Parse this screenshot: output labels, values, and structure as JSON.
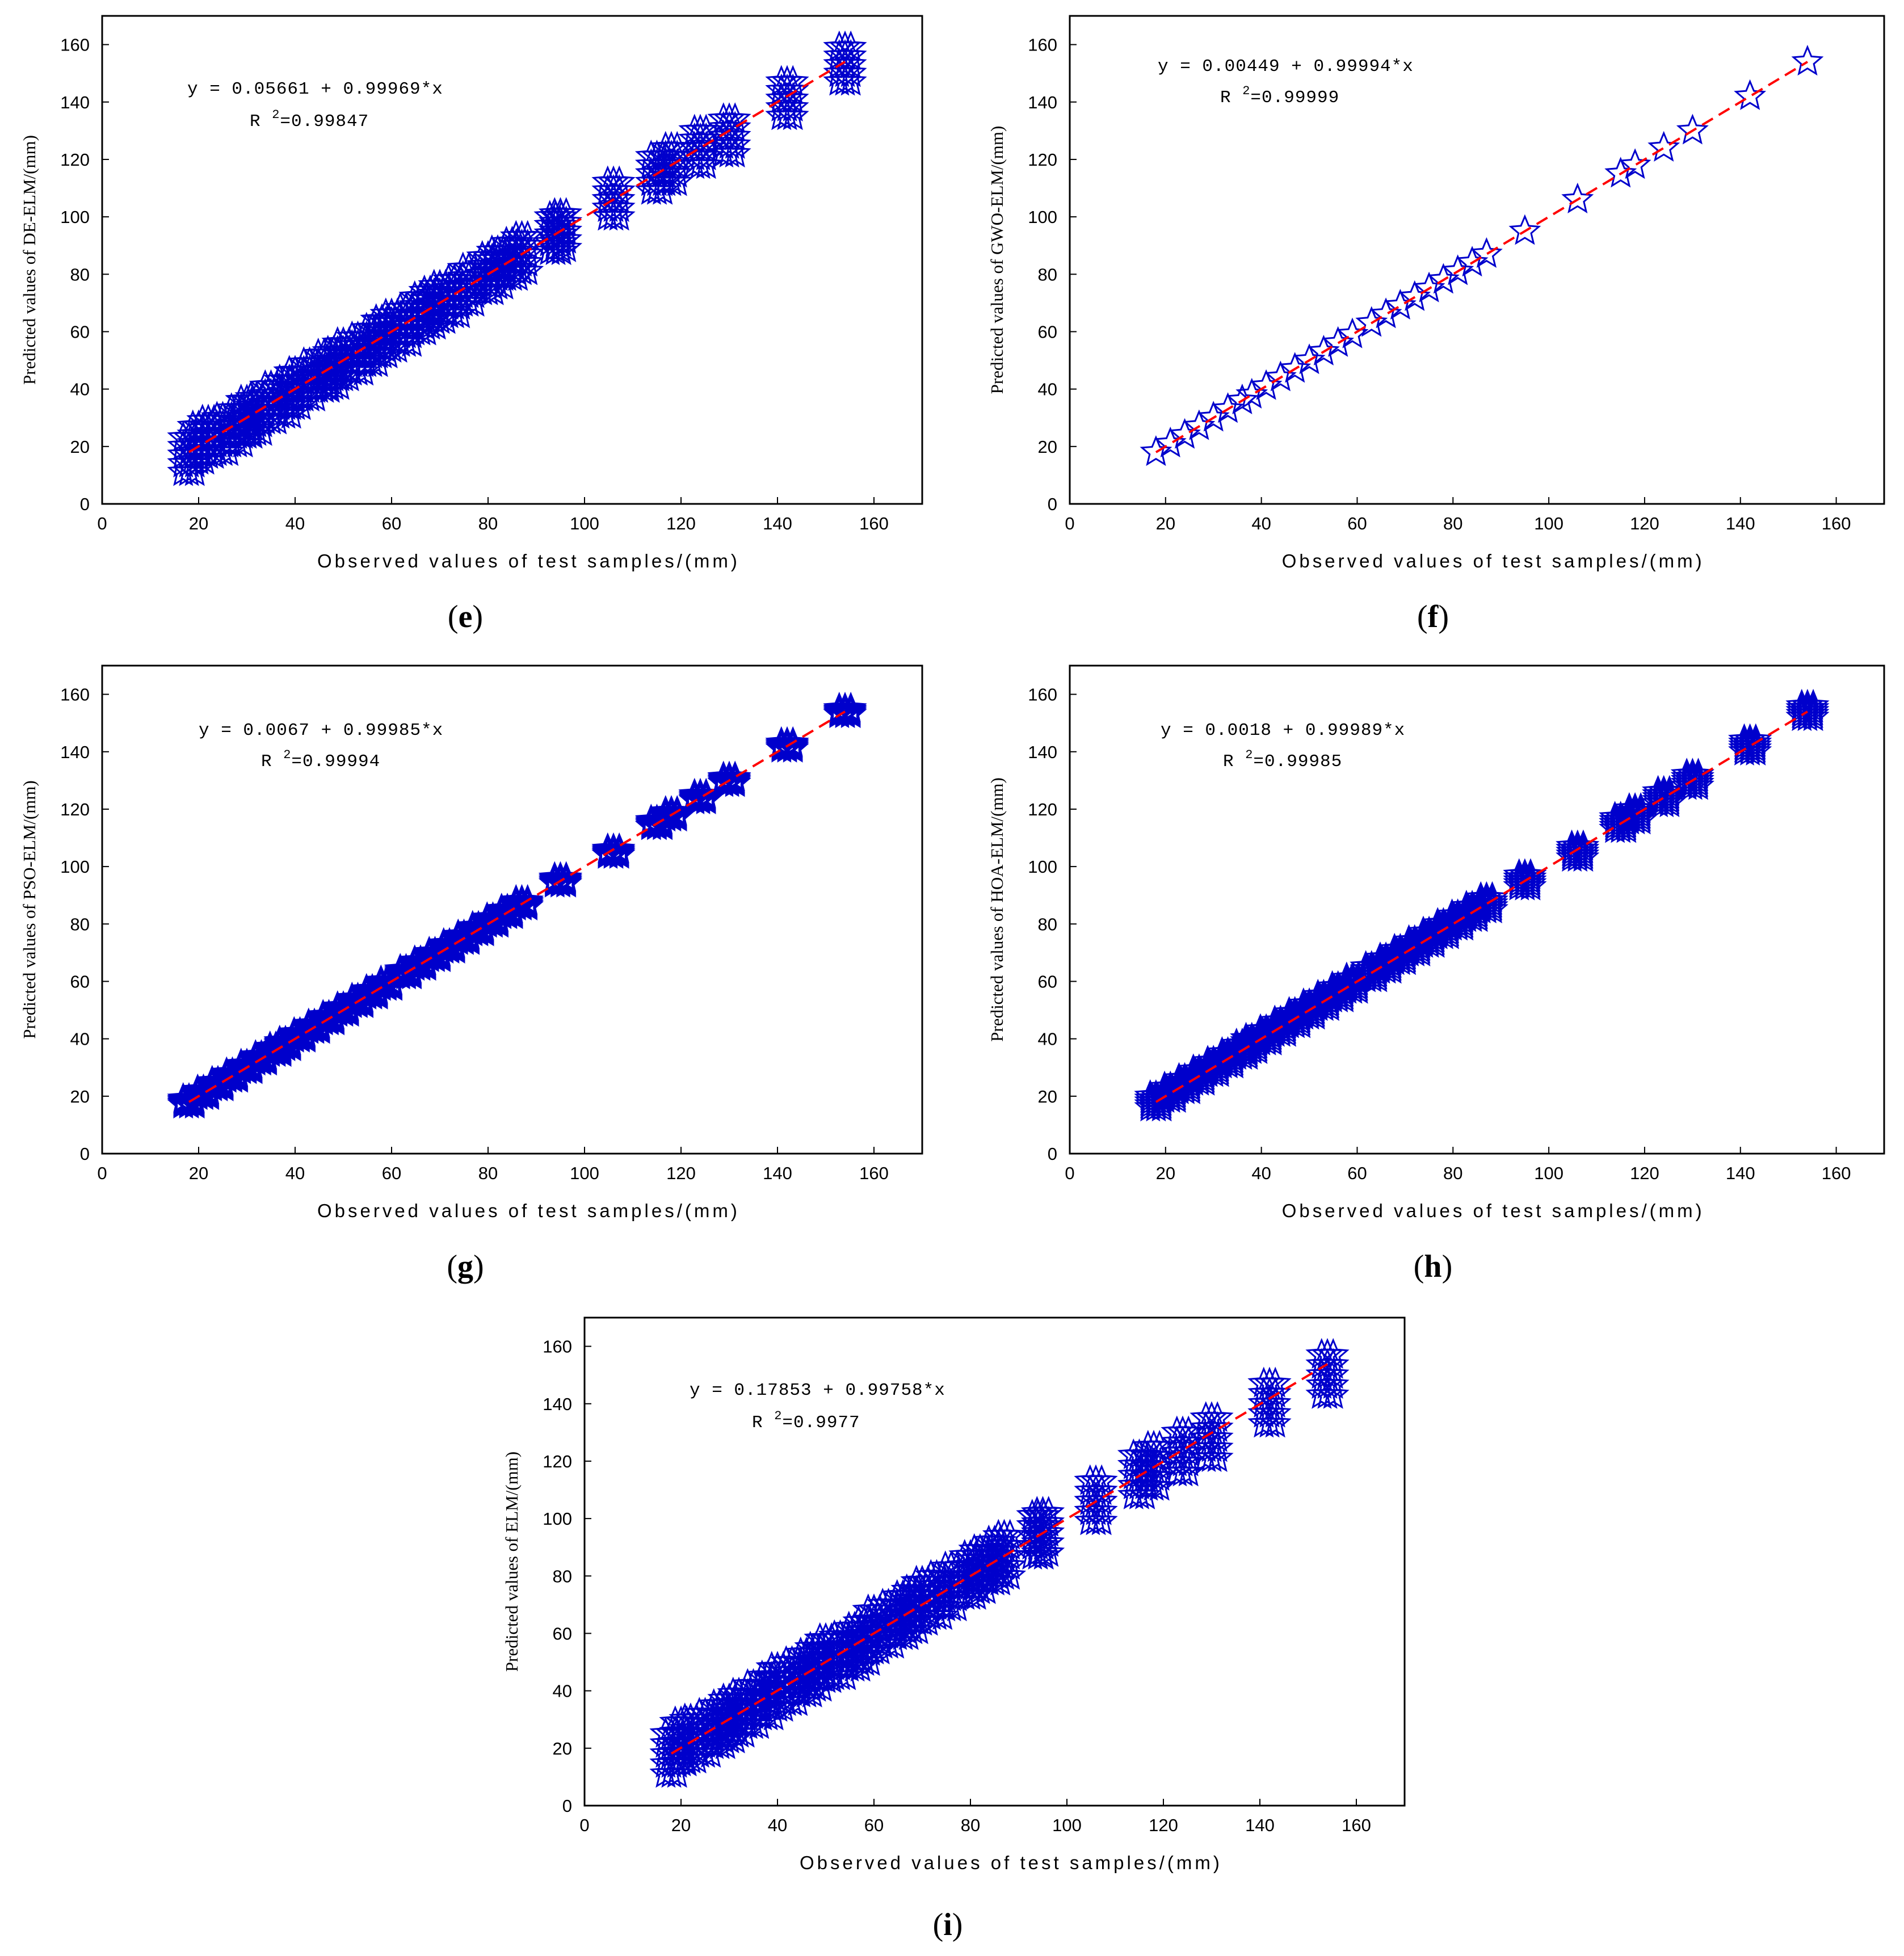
{
  "chart_data": [
    {
      "id": "e",
      "type": "scatter",
      "panel_label": "e",
      "xlabel": "Observed values of test samples/(mm)",
      "ylabel": "Predicted values of DE-ELM/(mm)",
      "equation": "y = 0.05661 + 0.99969*x",
      "r2_label": "R",
      "r2_sup": "2",
      "r2_value": "=0.99847",
      "xlim": [
        0,
        170
      ],
      "ylim": [
        0,
        170
      ],
      "xticks": [
        0,
        20,
        40,
        60,
        80,
        100,
        120,
        140,
        160
      ],
      "yticks": [
        0,
        20,
        40,
        60,
        80,
        100,
        120,
        140,
        160
      ],
      "fit": {
        "intercept": 0.05661,
        "slope": 0.99969
      },
      "x": [
        18,
        20,
        22,
        25,
        28,
        30,
        32,
        35,
        38,
        40,
        43,
        46,
        48,
        50,
        53,
        56,
        58,
        60,
        63,
        66,
        68,
        70,
        73,
        76,
        80,
        82,
        85,
        87,
        94,
        95,
        106,
        115,
        118,
        124,
        130,
        142,
        154
      ],
      "y": [
        17,
        21,
        23,
        24,
        27,
        30,
        31,
        35,
        37,
        40,
        43,
        46,
        47,
        50,
        52,
        55,
        58,
        60,
        62,
        66,
        68,
        70,
        72,
        76,
        80,
        82,
        85,
        87,
        94,
        95,
        106,
        115,
        118,
        124,
        128,
        141,
        153
      ],
      "spread": 6,
      "marker_color": "#0000cc",
      "fit_color": "#ff0000"
    },
    {
      "id": "f",
      "type": "scatter",
      "panel_label": "f",
      "xlabel": "Observed values of test samples/(mm)",
      "ylabel": "Predicted values of GWO-ELM/(mm)",
      "equation": "y = 0.00449 + 0.99994*x",
      "r2_label": "R",
      "r2_sup": "2",
      "r2_value": "=0.99999",
      "xlim": [
        0,
        170
      ],
      "ylim": [
        0,
        170
      ],
      "xticks": [
        0,
        20,
        40,
        60,
        80,
        100,
        120,
        140,
        160
      ],
      "yticks": [
        0,
        20,
        40,
        60,
        80,
        100,
        120,
        140,
        160
      ],
      "fit": {
        "intercept": 0.00449,
        "slope": 0.99994
      },
      "x": [
        18,
        21,
        24,
        27,
        30,
        33,
        36,
        38,
        41,
        44,
        47,
        50,
        53,
        56,
        59,
        63,
        66,
        69,
        72,
        75,
        78,
        81,
        84,
        87,
        95,
        106,
        115,
        118,
        124,
        130,
        142,
        154
      ],
      "y": [
        18,
        21,
        24,
        27,
        30,
        33,
        36,
        38,
        41,
        44,
        47,
        50,
        53,
        56,
        59,
        63,
        66,
        69,
        72,
        75,
        78,
        81,
        84,
        87,
        95,
        106,
        115,
        118,
        124,
        130,
        142,
        154
      ],
      "spread": 0,
      "marker_color": "#0000cc",
      "fit_color": "#ff0000"
    },
    {
      "id": "g",
      "type": "scatter",
      "panel_label": "g",
      "xlabel": "Observed values of test samples/(mm)",
      "ylabel": "Predicted values of PSO-ELM/(mm)",
      "equation": "y = 0.0067 + 0.99985*x",
      "r2_label": "R",
      "r2_sup": "2",
      "r2_value": "=0.99994",
      "xlim": [
        0,
        170
      ],
      "ylim": [
        0,
        170
      ],
      "xticks": [
        0,
        20,
        40,
        60,
        80,
        100,
        120,
        140,
        160
      ],
      "yticks": [
        0,
        20,
        40,
        60,
        80,
        100,
        120,
        140,
        160
      ],
      "fit": {
        "intercept": 0.0067,
        "slope": 0.99985
      },
      "x": [
        18,
        21,
        24,
        27,
        30,
        33,
        36,
        38,
        41,
        44,
        47,
        50,
        53,
        56,
        59,
        63,
        66,
        69,
        72,
        75,
        78,
        81,
        84,
        87,
        95,
        106,
        115,
        118,
        124,
        130,
        142,
        154
      ],
      "y": [
        18,
        21,
        24,
        27,
        30,
        33,
        36,
        38,
        41,
        44,
        47,
        50,
        53,
        56,
        59,
        63,
        66,
        69,
        72,
        75,
        78,
        81,
        84,
        87,
        95,
        105,
        115,
        118,
        124,
        130,
        142,
        154
      ],
      "spread": 1,
      "marker_color": "#0000cc",
      "fit_color": "#ff0000"
    },
    {
      "id": "h",
      "type": "scatter",
      "panel_label": "h",
      "xlabel": "Observed values of test samples/(mm)",
      "ylabel": "Predicted values of HOA-ELM/(mm)",
      "equation": "y = 0.0018 + 0.99989*x",
      "r2_label": "R",
      "r2_sup": "2",
      "r2_value": "=0.99985",
      "xlim": [
        0,
        170
      ],
      "ylim": [
        0,
        170
      ],
      "xticks": [
        0,
        20,
        40,
        60,
        80,
        100,
        120,
        140,
        160
      ],
      "yticks": [
        0,
        20,
        40,
        60,
        80,
        100,
        120,
        140,
        160
      ],
      "fit": {
        "intercept": 0.0018,
        "slope": 0.99989
      },
      "x": [
        18,
        21,
        24,
        27,
        30,
        33,
        36,
        38,
        41,
        44,
        47,
        50,
        53,
        56,
        59,
        63,
        66,
        69,
        72,
        75,
        78,
        81,
        84,
        87,
        95,
        106,
        115,
        118,
        124,
        130,
        142,
        154
      ],
      "y": [
        18,
        21,
        24,
        27,
        30,
        33,
        36,
        38,
        41,
        44,
        47,
        50,
        53,
        56,
        59,
        63,
        66,
        69,
        72,
        75,
        78,
        81,
        84,
        87,
        95,
        105,
        115,
        118,
        124,
        130,
        142,
        154
      ],
      "spread": 2,
      "marker_color": "#0000cc",
      "fit_color": "#ff0000"
    },
    {
      "id": "i",
      "type": "scatter",
      "panel_label": "i",
      "xlabel": "Observed values of test samples/(mm)",
      "ylabel": "Predicted values of ELM/(mm)",
      "equation": "y = 0.17853 + 0.99758*x",
      "r2_label": "R",
      "r2_sup": "2",
      "r2_value": "=0.9977",
      "xlim": [
        0,
        170
      ],
      "ylim": [
        0,
        170
      ],
      "xticks": [
        0,
        20,
        40,
        60,
        80,
        100,
        120,
        140,
        160
      ],
      "yticks": [
        0,
        20,
        40,
        60,
        80,
        100,
        120,
        140,
        160
      ],
      "fit": {
        "intercept": 0.17853,
        "slope": 0.99758
      },
      "x": [
        18,
        20,
        22,
        25,
        28,
        30,
        32,
        35,
        38,
        40,
        43,
        46,
        48,
        50,
        53,
        56,
        58,
        60,
        63,
        66,
        68,
        70,
        73,
        76,
        80,
        82,
        85,
        87,
        94,
        95,
        106,
        115,
        118,
        124,
        130,
        142,
        154
      ],
      "y": [
        18,
        22,
        23,
        25,
        28,
        30,
        32,
        35,
        38,
        41,
        43,
        46,
        48,
        51,
        52,
        55,
        57,
        61,
        63,
        66,
        68,
        71,
        73,
        76,
        80,
        82,
        85,
        87,
        94,
        95,
        106,
        115,
        118,
        123,
        128,
        140,
        150
      ],
      "spread": 7,
      "marker_color": "#0000cc",
      "fit_color": "#ff0000"
    }
  ]
}
